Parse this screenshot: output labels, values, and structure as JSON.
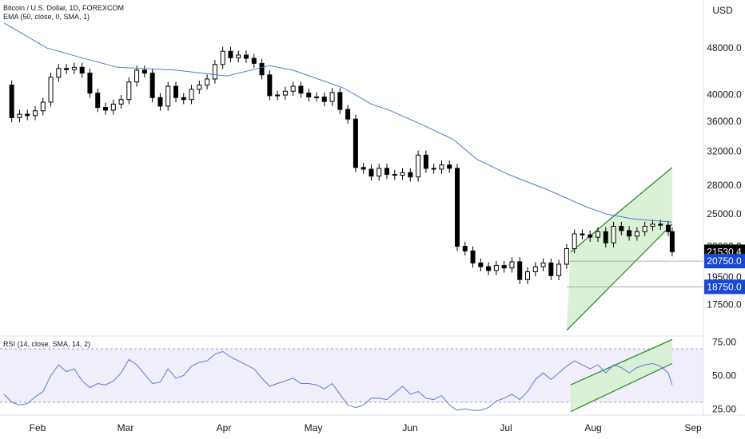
{
  "header": {
    "symbol_line": "Bitcoin / U.S. Dollar, 1D, FOREXCOM",
    "ema_line": "EMA (50, close, 0, SMA, 1)",
    "currency": "USD"
  },
  "rsi_header": "RSI (14, close, SMA, 14, 2)",
  "colors": {
    "candle": "#000000",
    "ema": "#4a7bd0",
    "channel_line": "#2e8b2e",
    "channel_fill": "#d6f0d2",
    "rsi_line": "#5b7ad8",
    "rsi_band": "#f1eefb",
    "price_tag_bg": "#1847d6",
    "last_price_bg": "#000000"
  },
  "chart_data": [
    {
      "type": "candlestick",
      "title": "Bitcoin / U.S. Dollar, 1D, FOREXCOM",
      "ylabel": "USD",
      "y_scale": "log",
      "ylim": [
        15500,
        58000
      ],
      "x_ticks": [
        "Feb",
        "Mar",
        "Apr",
        "May",
        "Jun",
        "Jul",
        "Aug",
        "Sep"
      ],
      "y_ticks": [
        17500,
        19500,
        22000,
        25000,
        28000,
        32000,
        36000,
        40000,
        48000
      ],
      "y_tick_labels": [
        "17500.0",
        "19500.0",
        "22000.0",
        "25000.0",
        "28000.0",
        "32000.0",
        "36000.0",
        "40000.0",
        "48000.0"
      ],
      "series": [
        {
          "name": "EMA (50, close, 0, SMA, 1)",
          "values": [
            [
              1,
              53000
            ],
            [
              12,
              48000
            ],
            [
              22,
              46000
            ],
            [
              30,
              44500
            ],
            [
              45,
              44000
            ],
            [
              58,
              43000
            ],
            [
              69,
              44800
            ],
            [
              75,
              44000
            ],
            [
              88,
              41000
            ],
            [
              95,
              38500
            ],
            [
              100,
              37500
            ],
            [
              108,
              35500
            ],
            [
              116,
              33500
            ],
            [
              122,
              31000
            ],
            [
              130,
              29200
            ],
            [
              140,
              27500
            ],
            [
              150,
              25700
            ],
            [
              155,
              25000
            ],
            [
              162,
              24500
            ],
            [
              172,
              24200
            ]
          ]
        },
        {
          "name": "ohlc_close",
          "values": [
            [
              1,
              41500
            ],
            [
              3,
              36500
            ],
            [
              5,
              37000
            ],
            [
              7,
              36800
            ],
            [
              9,
              37500
            ],
            [
              11,
              38800
            ],
            [
              13,
              42800
            ],
            [
              15,
              44300
            ],
            [
              17,
              44100
            ],
            [
              19,
              44500
            ],
            [
              21,
              43500
            ],
            [
              23,
              40200
            ],
            [
              25,
              38000
            ],
            [
              27,
              37600
            ],
            [
              29,
              38500
            ],
            [
              31,
              39200
            ],
            [
              33,
              42000
            ],
            [
              35,
              44000
            ],
            [
              37,
              43500
            ],
            [
              39,
              39500
            ],
            [
              41,
              38200
            ],
            [
              43,
              41300
            ],
            [
              45,
              39500
            ],
            [
              47,
              39200
            ],
            [
              49,
              40800
            ],
            [
              51,
              41500
            ],
            [
              53,
              42500
            ],
            [
              55,
              45000
            ],
            [
              57,
              47400
            ],
            [
              59,
              46200
            ],
            [
              61,
              46700
            ],
            [
              63,
              46100
            ],
            [
              65,
              45200
            ],
            [
              67,
              43200
            ],
            [
              69,
              39800
            ],
            [
              71,
              39900
            ],
            [
              73,
              40500
            ],
            [
              75,
              41300
            ],
            [
              77,
              40200
            ],
            [
              79,
              39600
            ],
            [
              81,
              39600
            ],
            [
              83,
              38900
            ],
            [
              85,
              40300
            ],
            [
              87,
              37700
            ],
            [
              89,
              36300
            ],
            [
              91,
              30000
            ],
            [
              93,
              29800
            ],
            [
              95,
              29000
            ],
            [
              97,
              29900
            ],
            [
              99,
              29200
            ],
            [
              101,
              29100
            ],
            [
              103,
              29400
            ],
            [
              105,
              28900
            ],
            [
              107,
              31500
            ],
            [
              109,
              29900
            ],
            [
              111,
              29800
            ],
            [
              113,
              30300
            ],
            [
              115,
              29900
            ],
            [
              117,
              22000
            ],
            [
              119,
              21600
            ],
            [
              121,
              20600
            ],
            [
              123,
              20300
            ],
            [
              125,
              20000
            ],
            [
              127,
              20400
            ],
            [
              129,
              20200
            ],
            [
              131,
              20700
            ],
            [
              133,
              19300
            ],
            [
              135,
              19900
            ],
            [
              137,
              20300
            ],
            [
              139,
              20600
            ],
            [
              141,
              19600
            ],
            [
              143,
              20500
            ],
            [
              145,
              21800
            ],
            [
              147,
              23100
            ],
            [
              149,
              23000
            ],
            [
              151,
              22800
            ],
            [
              153,
              23300
            ],
            [
              155,
              22300
            ],
            [
              157,
              23800
            ],
            [
              159,
              23400
            ],
            [
              161,
              22900
            ],
            [
              163,
              23300
            ],
            [
              165,
              23800
            ],
            [
              167,
              24000
            ],
            [
              169,
              23900
            ],
            [
              171,
              23300
            ],
            [
              172,
              21530.4
            ]
          ]
        }
      ],
      "channel": {
        "upper": [
          [
            146,
            21500
          ],
          [
            172,
            30000
          ]
        ],
        "lower": [
          [
            145,
            15800
          ],
          [
            172,
            24000
          ]
        ]
      },
      "price_tags": [
        21530.4,
        20750.0,
        18750.0
      ],
      "price_tag_labels": [
        "21530.4",
        "20750.0",
        "18750.0"
      ],
      "horizontal_lines": [
        20750,
        18750
      ]
    },
    {
      "type": "line",
      "title": "RSI (14, close, SMA, 14, 2)",
      "ylim": [
        21,
        79
      ],
      "y_ticks": [
        25,
        50,
        75
      ],
      "y_tick_labels": [
        "25.00",
        "50.00",
        "75.00"
      ],
      "bands": [
        30,
        70
      ],
      "series": [
        {
          "name": "RSI",
          "values": [
            [
              1,
              36
            ],
            [
              3,
              30
            ],
            [
              5,
              28
            ],
            [
              7,
              29
            ],
            [
              9,
              34
            ],
            [
              11,
              38
            ],
            [
              13,
              50
            ],
            [
              15,
              58
            ],
            [
              17,
              53
            ],
            [
              19,
              55
            ],
            [
              21,
              46
            ],
            [
              23,
              41
            ],
            [
              25,
              44
            ],
            [
              27,
              43
            ],
            [
              29,
              46
            ],
            [
              31,
              52
            ],
            [
              33,
              62
            ],
            [
              35,
              58
            ],
            [
              37,
              51
            ],
            [
              39,
              44
            ],
            [
              41,
              45
            ],
            [
              43,
              55
            ],
            [
              45,
              48
            ],
            [
              47,
              50
            ],
            [
              49,
              57
            ],
            [
              51,
              60
            ],
            [
              53,
              61
            ],
            [
              55,
              66
            ],
            [
              57,
              68
            ],
            [
              59,
              64
            ],
            [
              61,
              61
            ],
            [
              63,
              58
            ],
            [
              65,
              55
            ],
            [
              67,
              48
            ],
            [
              69,
              42
            ],
            [
              71,
              44
            ],
            [
              73,
              46
            ],
            [
              75,
              48
            ],
            [
              77,
              44
            ],
            [
              79,
              44
            ],
            [
              81,
              43
            ],
            [
              83,
              40
            ],
            [
              85,
              44
            ],
            [
              87,
              36
            ],
            [
              89,
              28
            ],
            [
              91,
              26
            ],
            [
              93,
              28
            ],
            [
              95,
              33
            ],
            [
              97,
              33
            ],
            [
              99,
              32
            ],
            [
              101,
              37
            ],
            [
              103,
              42
            ],
            [
              105,
              36
            ],
            [
              107,
              38
            ],
            [
              109,
              33
            ],
            [
              111,
              32
            ],
            [
              113,
              35
            ],
            [
              115,
              28
            ],
            [
              117,
              24
            ],
            [
              119,
              25
            ],
            [
              121,
              24
            ],
            [
              123,
              24
            ],
            [
              125,
              26
            ],
            [
              127,
              31
            ],
            [
              129,
              33
            ],
            [
              131,
              36
            ],
            [
              133,
              32
            ],
            [
              135,
              38
            ],
            [
              137,
              47
            ],
            [
              139,
              52
            ],
            [
              141,
              47
            ],
            [
              143,
              52
            ],
            [
              145,
              57
            ],
            [
              147,
              61
            ],
            [
              149,
              58
            ],
            [
              151,
              55
            ],
            [
              153,
              58
            ],
            [
              155,
              52
            ],
            [
              157,
              58
            ],
            [
              159,
              56
            ],
            [
              161,
              52
            ],
            [
              163,
              56
            ],
            [
              165,
              58
            ],
            [
              167,
              59
            ],
            [
              169,
              57
            ],
            [
              171,
              52
            ],
            [
              172,
              43
            ]
          ]
        }
      ],
      "channel": {
        "upper": [
          [
            146,
            43
          ],
          [
            172,
            77
          ]
        ],
        "lower": [
          [
            146,
            23
          ],
          [
            172,
            59
          ]
        ]
      }
    }
  ]
}
